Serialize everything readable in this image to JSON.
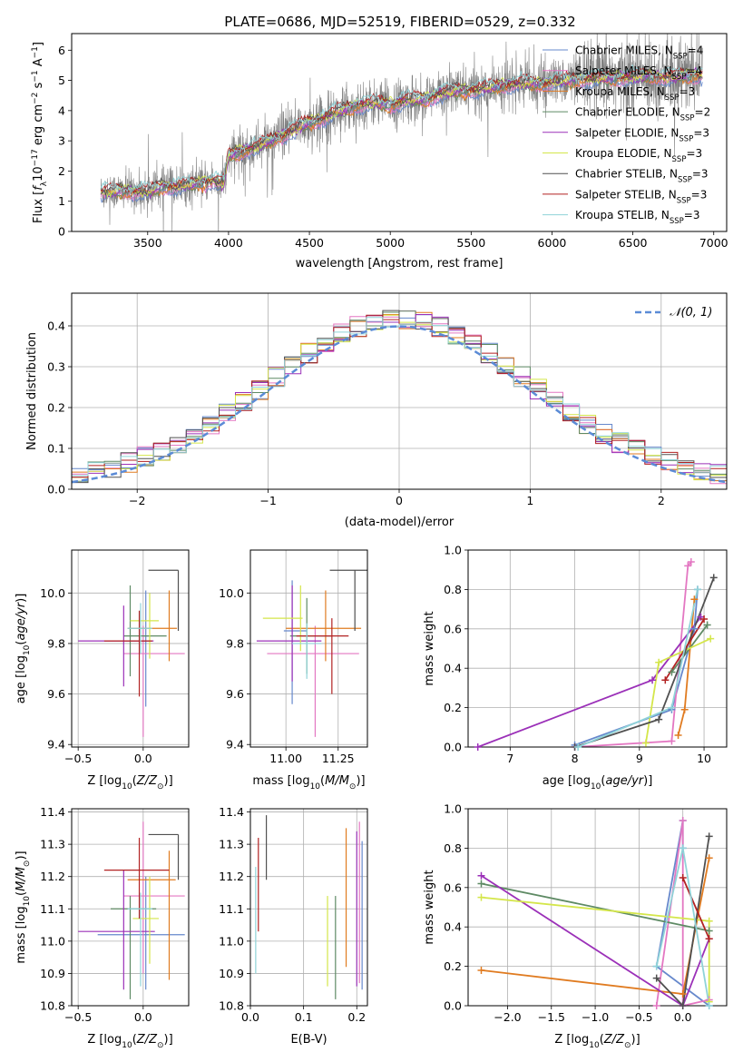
{
  "figure": {
    "title": "PLATE=0686, MJD=52519, FIBERID=0529, z=0.332"
  },
  "models": [
    {
      "name": "Chabrier MILES, N_SSP=4",
      "label_main": "Chabrier MILES, N",
      "label_sub": "SSP",
      "label_tail": "=4",
      "color": "#6688cc"
    },
    {
      "name": "Salpeter MILES, N_SSP=4",
      "label_main": "Salpeter MILES, N",
      "label_sub": "SSP",
      "label_tail": "=4",
      "color": "#e377c2"
    },
    {
      "name": "Kroupa MILES, N_SSP=3",
      "label_main": "Kroupa MILES, N",
      "label_sub": "SSP",
      "label_tail": "=3",
      "color": "#e07b20"
    },
    {
      "name": "Chabrier ELODIE, N_SSP=2",
      "label_main": "Chabrier ELODIE, N",
      "label_sub": "SSP",
      "label_tail": "=2",
      "color": "#5e8a64"
    },
    {
      "name": "Salpeter ELODIE, N_SSP=3",
      "label_main": "Salpeter ELODIE, N",
      "label_sub": "SSP",
      "label_tail": "=3",
      "color": "#9b30b8"
    },
    {
      "name": "Kroupa ELODIE, N_SSP=3",
      "label_main": "Kroupa ELODIE, N",
      "label_sub": "SSP",
      "label_tail": "=3",
      "color": "#d4e64a"
    },
    {
      "name": "Chabrier STELIB, N_SSP=3",
      "label_main": "Chabrier STELIB, N",
      "label_sub": "SSP",
      "label_tail": "=3",
      "color": "#505050"
    },
    {
      "name": "Salpeter STELIB, N_SSP=3",
      "label_main": "Salpeter STELIB, N",
      "label_sub": "SSP",
      "label_tail": "=3",
      "color": "#b22222"
    },
    {
      "name": "Kroupa STELIB, N_SSP=3",
      "label_main": "Kroupa STELIB, N",
      "label_sub": "SSP",
      "label_tail": "=3",
      "color": "#8fd3d8"
    }
  ],
  "chart_data": [
    {
      "id": "spectrum",
      "type": "line",
      "xlabel": "wavelength [Angstrom, rest frame]",
      "ylabel": "Flux [f_λ 10^-17 erg cm^-2 s^-1 A^-1]",
      "xlim": [
        3030,
        7080
      ],
      "ylim": [
        0,
        6.55
      ],
      "xticks": [
        3500,
        4000,
        4500,
        5000,
        5500,
        6000,
        6500,
        7000
      ],
      "yticks": [
        0,
        1,
        2,
        3,
        4,
        5,
        6
      ],
      "grid": false,
      "legend": "right",
      "data_color": "#808080",
      "data_range": [
        3210,
        6930
      ],
      "model_points": {
        "x": [
          3210,
          3400,
          3500,
          3600,
          3700,
          3800,
          3900,
          3970,
          4000,
          4100,
          4200,
          4300,
          4400,
          4500,
          4600,
          4700,
          4800,
          4900,
          5000,
          5100,
          5200,
          5300,
          5400,
          5500,
          5600,
          5700,
          5800,
          5900,
          6000,
          6100,
          6200,
          6300,
          6400,
          6500,
          6600,
          6700,
          6800,
          6900
        ],
        "y": [
          1.3,
          1.35,
          1.3,
          1.5,
          1.5,
          1.55,
          1.7,
          1.55,
          2.5,
          2.7,
          2.85,
          3.1,
          3.35,
          3.6,
          3.8,
          4.0,
          4.2,
          4.25,
          4.2,
          4.35,
          4.35,
          4.55,
          4.65,
          4.7,
          4.75,
          4.85,
          4.9,
          4.9,
          4.95,
          5.0,
          5.05,
          5.05,
          5.1,
          5.1,
          5.15,
          5.1,
          5.15,
          5.2
        ]
      }
    },
    {
      "id": "residuals",
      "type": "line",
      "xlabel": "(data-model)/error",
      "ylabel": "Normed distribution",
      "xlim": [
        -2.5,
        2.5
      ],
      "ylim": [
        0,
        0.48
      ],
      "xticks": [
        -2,
        -1,
        0,
        1,
        2
      ],
      "yticks": [
        0.0,
        0.1,
        0.2,
        0.3,
        0.4
      ],
      "grid": true,
      "legend": "top-right",
      "gaussian_label": "𝒩(0, 1)",
      "gaussian_color": "#5b8bd6",
      "bins": 40
    },
    {
      "id": "age-vs-Z",
      "type": "scatter",
      "xlabel": "Z [log10(Z/Z⊙)]",
      "ylabel": "age [log10(age/yr)]",
      "xlim": [
        -0.55,
        0.35
      ],
      "ylim": [
        9.39,
        10.17
      ],
      "xticks": [
        -0.5,
        0.0
      ],
      "yticks": [
        9.4,
        9.6,
        9.8,
        10.0
      ],
      "grid": true,
      "points": [
        {
          "model": 0,
          "x": 0.02,
          "y": 9.83,
          "xlo": 0.0,
          "xhi": 0.06,
          "ylo": 9.55,
          "yhi": 10.01
        },
        {
          "model": 1,
          "x": 0.0,
          "y": 9.76,
          "xlo": -0.15,
          "xhi": 0.32,
          "ylo": 9.43,
          "yhi": 9.87
        },
        {
          "model": 2,
          "x": 0.2,
          "y": 9.86,
          "xlo": -0.12,
          "xhi": 0.26,
          "ylo": 9.73,
          "yhi": 10.01
        },
        {
          "model": 3,
          "x": -0.1,
          "y": 9.83,
          "xlo": -0.15,
          "xhi": 0.18,
          "ylo": 9.67,
          "yhi": 10.03
        },
        {
          "model": 4,
          "x": -0.15,
          "y": 9.81,
          "xlo": -0.5,
          "xhi": 0.08,
          "ylo": 9.63,
          "yhi": 9.95
        },
        {
          "model": 5,
          "x": 0.05,
          "y": 9.89,
          "xlo": -0.1,
          "xhi": 0.12,
          "ylo": 9.74,
          "yhi": 10.0
        },
        {
          "model": 6,
          "x": 0.27,
          "y": 10.09,
          "xlo": 0.04,
          "xhi": 0.27,
          "ylo": 9.85,
          "yhi": 10.09
        },
        {
          "model": 7,
          "x": -0.03,
          "y": 9.81,
          "xlo": -0.3,
          "xhi": 0.07,
          "ylo": 9.59,
          "yhi": 9.93
        },
        {
          "model": 8,
          "x": -0.02,
          "y": 9.86,
          "xlo": -0.12,
          "xhi": 0.07,
          "ylo": 9.76,
          "yhi": 9.96
        }
      ]
    },
    {
      "id": "age-vs-mass",
      "type": "scatter",
      "xlabel": "mass [log10(M/M⊙)]",
      "ylabel": "",
      "xlim": [
        10.83,
        11.39
      ],
      "ylim": [
        9.39,
        10.17
      ],
      "xticks": [
        11.0,
        11.25
      ],
      "yticks": [
        9.4,
        9.6,
        9.8,
        10.0
      ],
      "grid": true,
      "points": [
        {
          "model": 0,
          "x": 11.03,
          "y": 9.85,
          "xlo": 10.99,
          "xhi": 11.1,
          "ylo": 9.56,
          "yhi": 10.05
        },
        {
          "model": 1,
          "x": 11.14,
          "y": 9.76,
          "xlo": 10.91,
          "xhi": 11.35,
          "ylo": 9.43,
          "yhi": 9.87
        },
        {
          "model": 2,
          "x": 11.19,
          "y": 9.86,
          "xlo": 11.0,
          "xhi": 11.36,
          "ylo": 9.73,
          "yhi": 10.01
        },
        {
          "model": 3,
          "x": 11.1,
          "y": 9.83,
          "xlo": 11.02,
          "xhi": 11.22,
          "ylo": 9.68,
          "yhi": 9.98
        },
        {
          "model": 4,
          "x": 11.03,
          "y": 9.81,
          "xlo": 10.86,
          "xhi": 11.17,
          "ylo": 9.65,
          "yhi": 10.03
        },
        {
          "model": 5,
          "x": 11.07,
          "y": 9.9,
          "xlo": 10.89,
          "xhi": 11.08,
          "ylo": 9.77,
          "yhi": 10.03
        },
        {
          "model": 6,
          "x": 11.33,
          "y": 10.09,
          "xlo": 11.21,
          "xhi": 11.39,
          "ylo": 9.85,
          "yhi": 10.09
        },
        {
          "model": 7,
          "x": 11.22,
          "y": 9.83,
          "xlo": 11.05,
          "xhi": 11.3,
          "ylo": 9.6,
          "yhi": 9.9
        },
        {
          "model": 8,
          "x": 11.1,
          "y": 9.8,
          "xlo": 11.03,
          "xhi": 11.17,
          "ylo": 9.66,
          "yhi": 9.88
        }
      ]
    },
    {
      "id": "weight-vs-age",
      "type": "line",
      "xlabel": "age [log10(age/yr)]",
      "ylabel": "mass weight",
      "xlim": [
        6.35,
        10.35
      ],
      "ylim": [
        0,
        1.0
      ],
      "xticks": [
        7,
        8,
        9,
        10
      ],
      "yticks": [
        0.0,
        0.2,
        0.4,
        0.6,
        0.8,
        1.0
      ],
      "grid": true,
      "series": [
        {
          "model": 0,
          "x": [
            8.0,
            9.5,
            9.85,
            9.9
          ],
          "y": [
            0.01,
            0.19,
            0.6,
            0.8
          ]
        },
        {
          "model": 1,
          "x": [
            8.0,
            9.5,
            9.75,
            9.8
          ],
          "y": [
            0.0,
            0.03,
            0.92,
            0.94
          ]
        },
        {
          "model": 2,
          "x": [
            9.6,
            9.7,
            9.85
          ],
          "y": [
            0.06,
            0.19,
            0.75
          ]
        },
        {
          "model": 3,
          "x": [
            9.5,
            10.05
          ],
          "y": [
            0.38,
            0.62
          ]
        },
        {
          "model": 4,
          "x": [
            6.5,
            9.2,
            9.95
          ],
          "y": [
            0.0,
            0.34,
            0.66
          ]
        },
        {
          "model": 5,
          "x": [
            9.1,
            9.3,
            10.1
          ],
          "y": [
            0.02,
            0.43,
            0.55
          ]
        },
        {
          "model": 6,
          "x": [
            8.0,
            9.3,
            10.15
          ],
          "y": [
            0.0,
            0.14,
            0.86
          ]
        },
        {
          "model": 7,
          "x": [
            9.4,
            10.0
          ],
          "y": [
            0.34,
            0.65
          ]
        },
        {
          "model": 8,
          "x": [
            8.05,
            9.5,
            9.9
          ],
          "y": [
            0.0,
            0.2,
            0.8
          ]
        }
      ]
    },
    {
      "id": "mass-vs-Z",
      "type": "scatter",
      "xlabel": "Z [log10(Z/Z⊙)]",
      "ylabel": "mass [log10(M/M⊙)]",
      "xlim": [
        -0.55,
        0.35
      ],
      "ylim": [
        10.8,
        11.41
      ],
      "xticks": [
        -0.5,
        0.0
      ],
      "yticks": [
        10.8,
        10.9,
        11.0,
        11.1,
        11.2,
        11.3,
        11.4
      ],
      "grid": true,
      "points": [
        {
          "model": 0,
          "x": 0.02,
          "y": 11.02,
          "xlo": -0.35,
          "xhi": 0.32,
          "ylo": 10.85,
          "yhi": 11.2
        },
        {
          "model": 1,
          "x": 0.0,
          "y": 11.14,
          "xlo": -0.15,
          "xhi": 0.32,
          "ylo": 10.9,
          "yhi": 11.37
        },
        {
          "model": 2,
          "x": 0.2,
          "y": 11.19,
          "xlo": -0.12,
          "xhi": 0.25,
          "ylo": 10.88,
          "yhi": 11.28
        },
        {
          "model": 3,
          "x": -0.1,
          "y": 11.1,
          "xlo": -0.25,
          "xhi": 0.1,
          "ylo": 10.82,
          "yhi": 11.14
        },
        {
          "model": 4,
          "x": -0.15,
          "y": 11.03,
          "xlo": -0.5,
          "xhi": 0.09,
          "ylo": 10.85,
          "yhi": 11.22
        },
        {
          "model": 5,
          "x": 0.05,
          "y": 11.07,
          "xlo": -0.08,
          "xhi": 0.12,
          "ylo": 10.93,
          "yhi": 11.2
        },
        {
          "model": 6,
          "x": 0.27,
          "y": 11.33,
          "xlo": 0.04,
          "xhi": 0.27,
          "ylo": 11.19,
          "yhi": 11.33
        },
        {
          "model": 7,
          "x": -0.03,
          "y": 11.22,
          "xlo": -0.3,
          "xhi": 0.2,
          "ylo": 11.07,
          "yhi": 11.32
        },
        {
          "model": 8,
          "x": -0.02,
          "y": 11.1,
          "xlo": -0.12,
          "xhi": 0.07,
          "ylo": 10.86,
          "yhi": 11.15
        }
      ]
    },
    {
      "id": "mass-vs-EBV",
      "type": "scatter",
      "xlabel": "E(B-V)",
      "ylabel": "",
      "xlim": [
        0.0,
        0.22
      ],
      "ylim": [
        10.8,
        11.41
      ],
      "xticks": [
        0.0,
        0.1,
        0.2
      ],
      "yticks": [
        10.8,
        10.9,
        11.0,
        11.1,
        11.2,
        11.3,
        11.4
      ],
      "grid": true,
      "points": [
        {
          "model": 0,
          "x": 0.21,
          "ylo": 10.85,
          "yhi": 11.31
        },
        {
          "model": 1,
          "x": 0.205,
          "ylo": 10.87,
          "yhi": 11.37
        },
        {
          "model": 2,
          "x": 0.18,
          "ylo": 10.92,
          "yhi": 11.35
        },
        {
          "model": 3,
          "x": 0.16,
          "ylo": 10.82,
          "yhi": 11.14
        },
        {
          "model": 4,
          "x": 0.2,
          "ylo": 10.86,
          "yhi": 11.34
        },
        {
          "model": 5,
          "x": 0.145,
          "ylo": 10.86,
          "yhi": 11.14
        },
        {
          "model": 6,
          "x": 0.03,
          "ylo": 11.19,
          "yhi": 11.39
        },
        {
          "model": 7,
          "x": 0.015,
          "ylo": 11.03,
          "yhi": 11.32
        },
        {
          "model": 8,
          "x": 0.01,
          "ylo": 10.9,
          "yhi": 11.23
        }
      ]
    },
    {
      "id": "weight-vs-Z",
      "type": "line",
      "xlabel": "Z [log10(Z/Z⊙)]",
      "ylabel": "mass weight",
      "xlim": [
        -2.45,
        0.5
      ],
      "ylim": [
        0,
        1.0
      ],
      "xticks": [
        -2.0,
        -1.5,
        -1.0,
        -0.5,
        0.0
      ],
      "yticks": [
        0.0,
        0.2,
        0.4,
        0.6,
        0.8,
        1.0
      ],
      "grid": true,
      "series": [
        {
          "model": 0,
          "x": [
            0.3,
            -0.3,
            0.0,
            0.0
          ],
          "y": [
            0.0,
            0.2,
            0.94,
            0.8
          ]
        },
        {
          "model": 1,
          "x": [
            -0.3,
            0.0,
            0.0,
            0.3
          ],
          "y": [
            0.0,
            0.94,
            0.0,
            0.03
          ]
        },
        {
          "model": 2,
          "x": [
            -2.3,
            0.0,
            0.3
          ],
          "y": [
            0.18,
            0.06,
            0.75
          ]
        },
        {
          "model": 3,
          "x": [
            -2.3,
            0.3
          ],
          "y": [
            0.62,
            0.38
          ]
        },
        {
          "model": 4,
          "x": [
            -2.3,
            0.0,
            0.3
          ],
          "y": [
            0.66,
            0.0,
            0.34
          ]
        },
        {
          "model": 5,
          "x": [
            -2.3,
            0.3,
            0.3
          ],
          "y": [
            0.55,
            0.43,
            0.02
          ]
        },
        {
          "model": 6,
          "x": [
            -0.3,
            0.0,
            0.3
          ],
          "y": [
            0.14,
            0.0,
            0.86
          ]
        },
        {
          "model": 7,
          "x": [
            0.3,
            0.0
          ],
          "y": [
            0.34,
            0.65
          ]
        },
        {
          "model": 8,
          "x": [
            -0.3,
            0.0,
            0.3
          ],
          "y": [
            0.2,
            0.8,
            0.0
          ]
        }
      ]
    }
  ]
}
